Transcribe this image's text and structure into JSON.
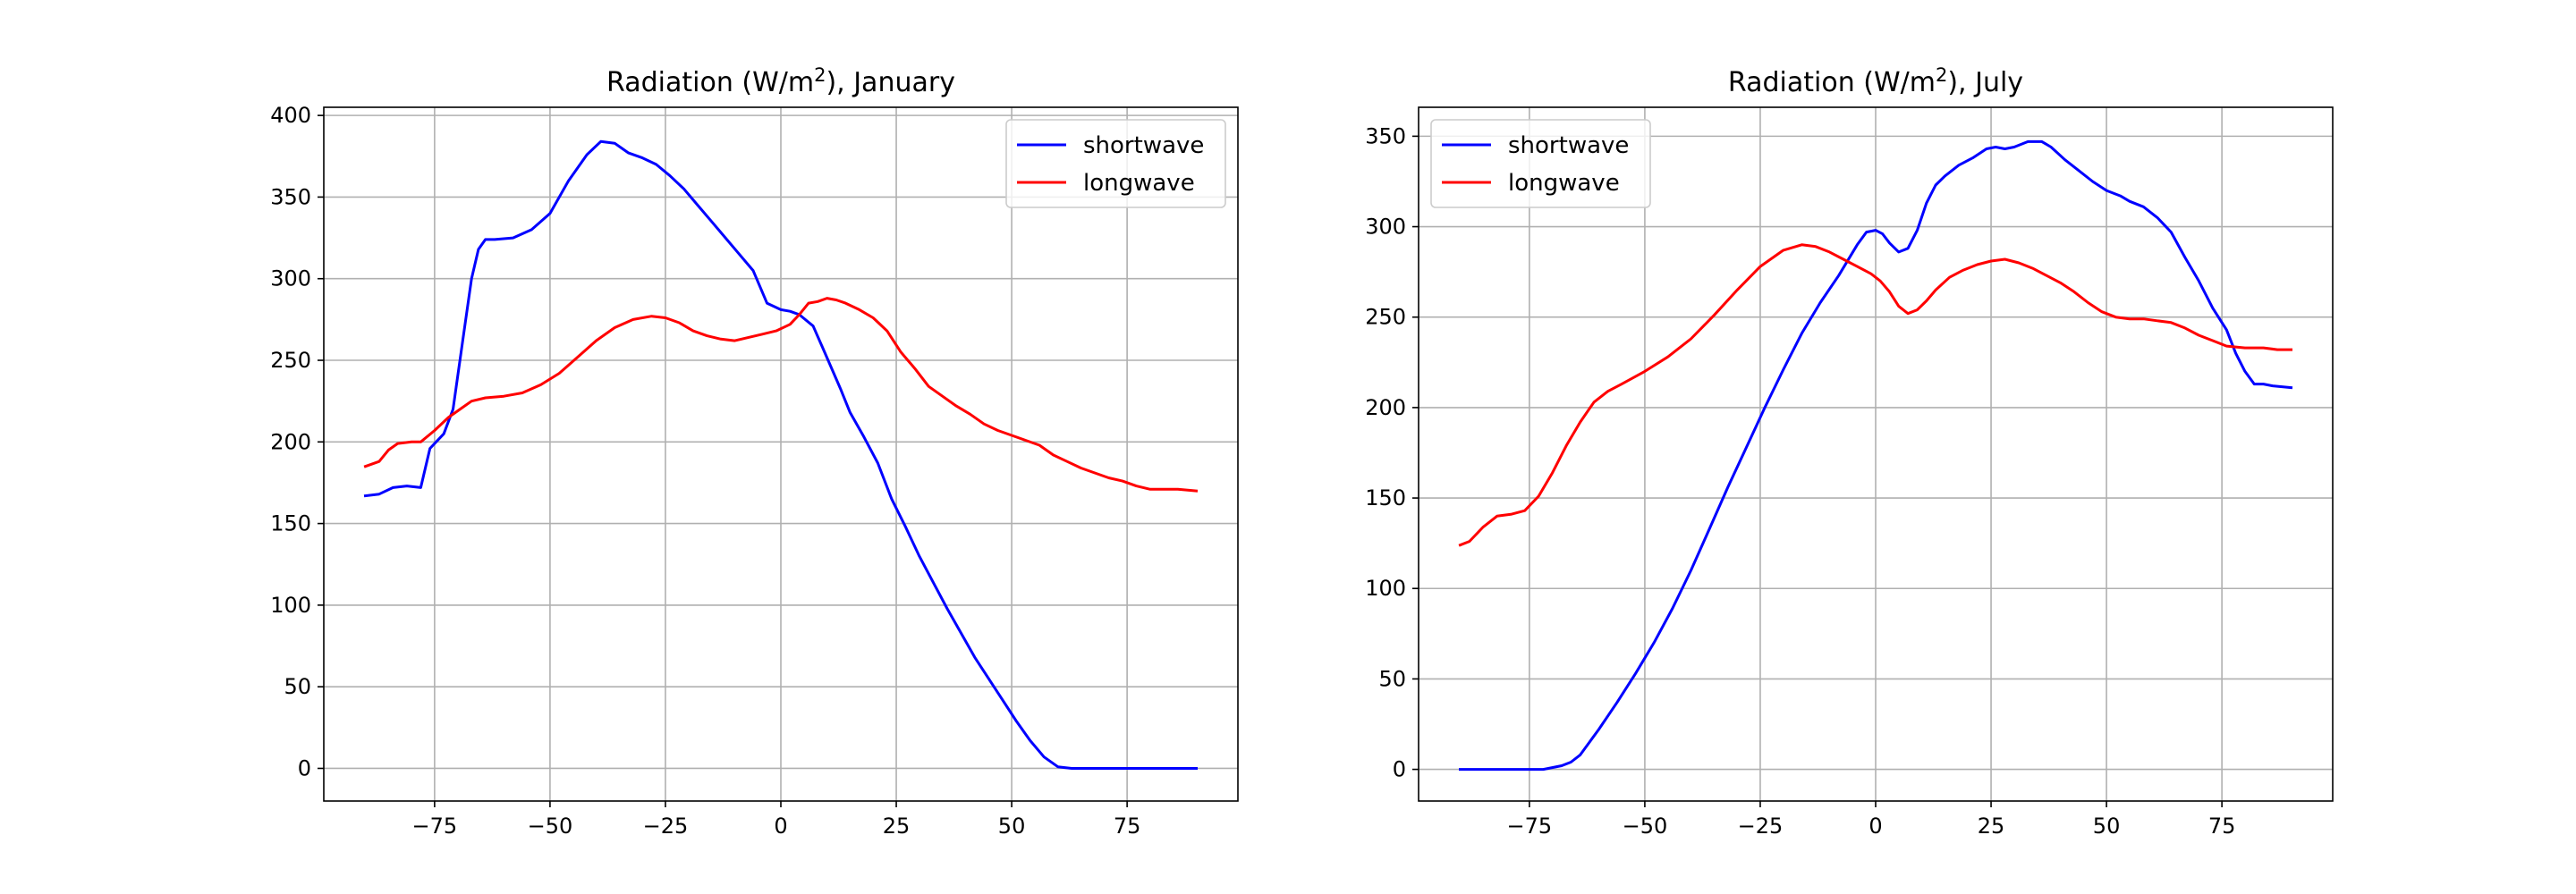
{
  "colors": {
    "shortwave": "#0000ff",
    "longwave": "#ff0000",
    "grid": "#b0b0b0",
    "axes": "#000000",
    "background": "#ffffff"
  },
  "chart_data": [
    {
      "type": "line",
      "title": "Radiation (W/m²), January",
      "title_parts": {
        "before": "Radiation (W/m",
        "sup": "2",
        "after": "), January"
      },
      "xlabel": "",
      "ylabel": "",
      "xlim": [
        -99,
        99
      ],
      "ylim": [
        -20,
        405
      ],
      "xticks": [
        -75,
        -50,
        -25,
        0,
        25,
        50,
        75
      ],
      "yticks": [
        0,
        50,
        100,
        150,
        200,
        250,
        300,
        350,
        400
      ],
      "xtick_labels": [
        "−75",
        "−50",
        "−25",
        "0",
        "25",
        "50",
        "75"
      ],
      "ytick_labels": [
        "0",
        "50",
        "100",
        "150",
        "200",
        "250",
        "300",
        "350",
        "400"
      ],
      "grid": true,
      "legend_position": "upper right",
      "series": [
        {
          "name": "shortwave",
          "color": "#0000ff",
          "x": [
            -90,
            -87,
            -84,
            -81,
            -78,
            -76,
            -73,
            -71,
            -69,
            -67,
            -65.5,
            -64,
            -62,
            -58,
            -54,
            -50,
            -46,
            -42,
            -39,
            -36,
            -34.5,
            -33,
            -30,
            -27,
            -24,
            -21,
            -18,
            -15,
            -12,
            -9,
            -6,
            -3,
            0,
            2,
            4,
            7,
            9,
            11,
            13,
            15,
            18,
            21,
            24,
            27,
            30,
            33,
            36,
            39,
            42,
            45,
            48,
            51,
            54,
            57,
            60,
            63,
            66,
            69,
            72,
            75,
            78,
            81,
            84,
            87,
            90
          ],
          "y": [
            167,
            168,
            172,
            173,
            172,
            196,
            205,
            220,
            260,
            300,
            318,
            324,
            324,
            325,
            330,
            340,
            360,
            376,
            384,
            383,
            380,
            377,
            374,
            370,
            363,
            355,
            345,
            335,
            325,
            315,
            305,
            285,
            281,
            280,
            278,
            271,
            258,
            245,
            232,
            218,
            203,
            187,
            165,
            148,
            130,
            114,
            98,
            83,
            68,
            55,
            42,
            29,
            17,
            7,
            1,
            0,
            0,
            0,
            0,
            0,
            0,
            0,
            0,
            0,
            0
          ]
        },
        {
          "name": "longwave",
          "color": "#ff0000",
          "x": [
            -90,
            -87,
            -85,
            -83,
            -80,
            -78,
            -75,
            -72,
            -69,
            -67,
            -64,
            -60,
            -56,
            -52,
            -48,
            -44,
            -40,
            -36,
            -32,
            -28,
            -25,
            -22,
            -19,
            -16,
            -13,
            -10,
            -7,
            -4,
            -1,
            2,
            4,
            6,
            8,
            10,
            12,
            14,
            17,
            20,
            23,
            26,
            29,
            32,
            35,
            38,
            41,
            44,
            47,
            50,
            53,
            56,
            59,
            62,
            65,
            68,
            71,
            74,
            77,
            80,
            83,
            86,
            90
          ],
          "y": [
            185,
            188,
            195,
            199,
            200,
            200,
            207,
            215,
            221,
            225,
            227,
            228,
            230,
            235,
            242,
            252,
            262,
            270,
            275,
            277,
            276,
            273,
            268,
            265,
            263,
            262,
            264,
            266,
            268,
            272,
            278,
            285,
            286,
            288,
            287,
            285,
            281,
            276,
            268,
            255,
            245,
            234,
            228,
            222,
            217,
            211,
            207,
            204,
            201,
            198,
            192,
            188,
            184,
            181,
            178,
            176,
            173,
            171,
            171,
            171,
            170
          ]
        }
      ]
    },
    {
      "type": "line",
      "title": "Radiation (W/m²), July",
      "title_parts": {
        "before": "Radiation (W/m",
        "sup": "2",
        "after": "), July"
      },
      "xlabel": "",
      "ylabel": "",
      "xlim": [
        -99,
        99
      ],
      "ylim": [
        -17.5,
        366
      ],
      "xticks": [
        -75,
        -50,
        -25,
        0,
        25,
        50,
        75
      ],
      "yticks": [
        0,
        50,
        100,
        150,
        200,
        250,
        300,
        350
      ],
      "xtick_labels": [
        "−75",
        "−50",
        "−25",
        "0",
        "25",
        "50",
        "75"
      ],
      "ytick_labels": [
        "0",
        "50",
        "100",
        "150",
        "200",
        "250",
        "300",
        "350"
      ],
      "grid": true,
      "legend_position": "upper left",
      "series": [
        {
          "name": "shortwave",
          "color": "#0000ff",
          "x": [
            -90,
            -80,
            -72,
            -68,
            -66,
            -64,
            -62,
            -60,
            -56,
            -52,
            -48,
            -44,
            -40,
            -36,
            -32,
            -28,
            -24,
            -20,
            -16,
            -12,
            -8,
            -4,
            -2,
            0,
            1.5,
            3,
            5,
            7,
            9,
            11,
            13,
            15,
            18,
            21,
            24,
            26,
            28,
            30,
            33,
            36,
            38,
            41,
            44,
            47,
            50,
            53,
            55,
            58,
            61,
            64,
            67,
            70,
            73,
            76,
            78,
            80,
            82,
            84,
            86,
            90
          ],
          "y": [
            0,
            0,
            0,
            2,
            4,
            8,
            15,
            22,
            37,
            53,
            70,
            89,
            110,
            133,
            156,
            178,
            200,
            221,
            241,
            258,
            273,
            290,
            297,
            298,
            296,
            291,
            286,
            288,
            298,
            313,
            323,
            328,
            334,
            338,
            343,
            344,
            343,
            344,
            347,
            347,
            344,
            337,
            331,
            325,
            320,
            317,
            314,
            311,
            305,
            297,
            283,
            270,
            255,
            243,
            230,
            220,
            213,
            213,
            212,
            211
          ]
        },
        {
          "name": "longwave",
          "color": "#ff0000",
          "x": [
            -90,
            -88,
            -85,
            -82,
            -79,
            -76,
            -73,
            -70,
            -67,
            -64,
            -61,
            -58,
            -55,
            -50,
            -45,
            -40,
            -35,
            -30,
            -25,
            -20,
            -16,
            -13,
            -10,
            -7,
            -4,
            -1,
            1,
            3,
            5,
            7,
            9,
            11,
            13,
            16,
            19,
            22,
            25,
            28,
            31,
            34,
            37,
            40,
            43,
            46,
            49,
            52,
            55,
            58,
            61,
            64,
            67,
            70,
            73,
            76,
            80,
            84,
            87,
            90
          ],
          "y": [
            124,
            126,
            134,
            140,
            141,
            143,
            151,
            164,
            179,
            192,
            203,
            209,
            213,
            220,
            228,
            238,
            251,
            265,
            278,
            287,
            290,
            289,
            286,
            282,
            278,
            274,
            270,
            264,
            256,
            252,
            254,
            259,
            265,
            272,
            276,
            279,
            281,
            282,
            280,
            277,
            273,
            269,
            264,
            258,
            253,
            250,
            249,
            249,
            248,
            247,
            244,
            240,
            237,
            234,
            233,
            233,
            232,
            232
          ]
        }
      ]
    }
  ]
}
